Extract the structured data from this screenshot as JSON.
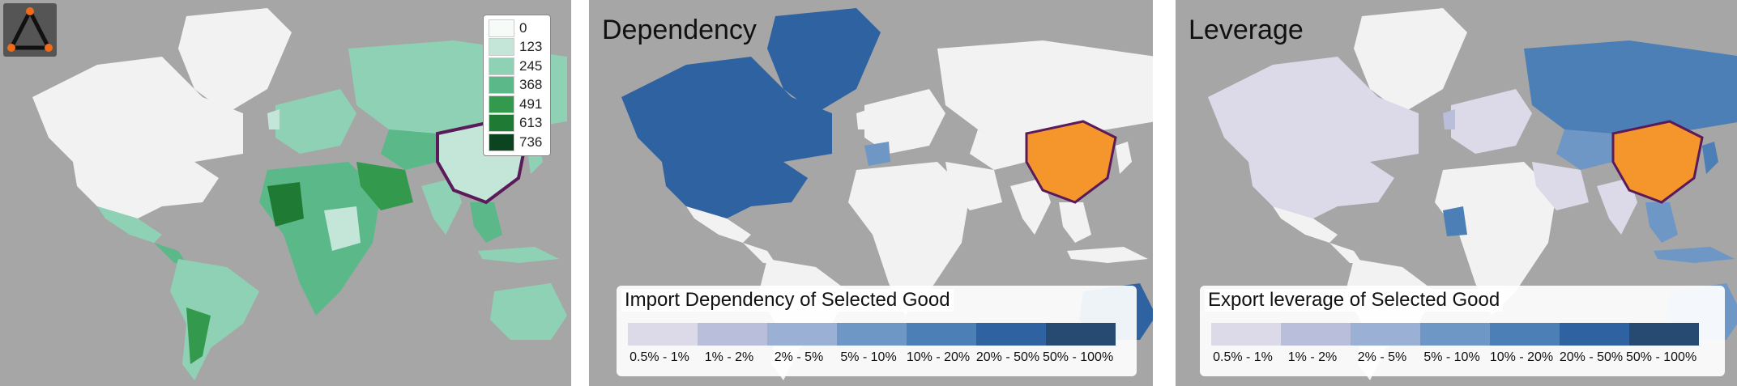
{
  "colors": {
    "ocean": "#a6a6a6",
    "land_none": "#f2f2f2",
    "selected_country": "#f5962d",
    "selected_outline": "#5b1a5a",
    "green_scale": [
      "#f7fbf7",
      "#c4e6d9",
      "#8fd1b5",
      "#5ab889",
      "#33994d",
      "#1f7a34",
      "#0c4420"
    ],
    "blue_scale": [
      "#dcdae9",
      "#b9bedb",
      "#9ab0d5",
      "#6f97c6",
      "#4b7fb5",
      "#2e62a0",
      "#274a72"
    ]
  },
  "panel_a": {
    "logo_icon": "network-triangle-icon",
    "scale": [
      {
        "label": "0"
      },
      {
        "label": "123"
      },
      {
        "label": "245"
      },
      {
        "label": "368"
      },
      {
        "label": "491"
      },
      {
        "label": "613"
      },
      {
        "label": "736"
      }
    ]
  },
  "panel_b": {
    "title": "Dependency",
    "legend_title": "Import Dependency of Selected Good",
    "legend_labels": [
      "0.5% - 1%",
      "1% - 2%",
      "2% - 5%",
      "5% - 10%",
      "10% - 20%",
      "20% - 50%",
      "50% - 100%"
    ]
  },
  "panel_c": {
    "title": "Leverage",
    "legend_title": "Export leverage of Selected Good",
    "legend_labels": [
      "0.5% - 1%",
      "1% - 2%",
      "2% - 5%",
      "5% - 10%",
      "10% - 20%",
      "20% - 50%",
      "50% - 100%"
    ]
  }
}
